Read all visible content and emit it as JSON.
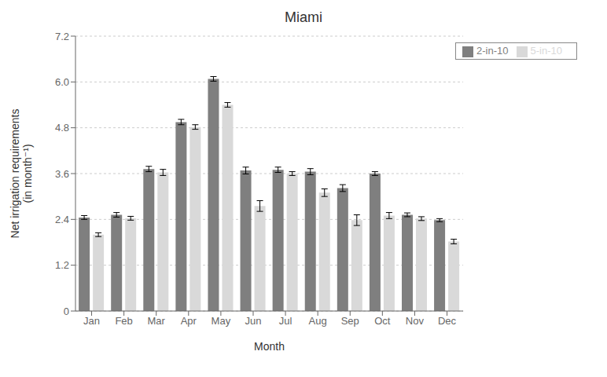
{
  "chart_data": {
    "type": "bar",
    "title": "Miami",
    "xlabel": "Month",
    "ylabel": "Net irrigation requirements\n(in month⁻¹)",
    "categories": [
      "Jan",
      "Feb",
      "Mar",
      "Apr",
      "May",
      "Jun",
      "Jul",
      "Aug",
      "Sep",
      "Oct",
      "Nov",
      "Dec"
    ],
    "series": [
      {
        "name": "2-in-10",
        "color": "#7f7f7f",
        "values": [
          2.45,
          2.52,
          3.72,
          4.95,
          6.08,
          3.68,
          3.7,
          3.65,
          3.22,
          3.6,
          2.52,
          2.38
        ],
        "errors": [
          0.05,
          0.06,
          0.07,
          0.07,
          0.06,
          0.09,
          0.07,
          0.08,
          0.09,
          0.05,
          0.05,
          0.04
        ]
      },
      {
        "name": "5-in-10",
        "color": "#d9d9d9",
        "values": [
          2.0,
          2.43,
          3.63,
          4.82,
          5.4,
          2.75,
          3.6,
          3.1,
          2.38,
          2.5,
          2.42,
          1.82
        ],
        "errors": [
          0.05,
          0.05,
          0.08,
          0.06,
          0.06,
          0.14,
          0.05,
          0.1,
          0.14,
          0.08,
          0.05,
          0.06
        ]
      }
    ],
    "ylim": [
      0,
      7.2
    ],
    "yticks": [
      0,
      1.2,
      2.4,
      3.6,
      4.8,
      {
        "value": 6,
        "label": "6.0"
      },
      7.2
    ],
    "grid": true,
    "legend": "upper right"
  }
}
